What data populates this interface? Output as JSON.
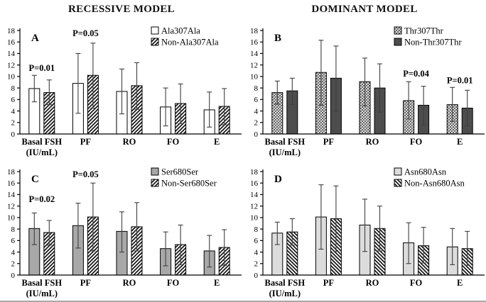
{
  "figure": {
    "left_title": "RECESSIVE MODEL",
    "right_title": "DOMINANT MODEL"
  },
  "colors": {
    "axis": "#000000",
    "error_bar": "#3f3f3f",
    "hatch_line": "#161616",
    "checker_line": "#4a4a4a",
    "dark_gray": "#4d4d4d",
    "mid_gray": "#a8a8a8",
    "light_gray": "#dcdcdc",
    "white": "#ffffff"
  },
  "chart_data": [
    {
      "type": "bar",
      "panel_label": "A",
      "model": "RECESSIVE MODEL",
      "ylim": [
        0,
        18
      ],
      "ytick_step": 2,
      "grid": false,
      "legend_position": "top-right",
      "categories": [
        [
          "Basal FSH",
          "(IU/mL)"
        ],
        [
          "PF"
        ],
        [
          "RO"
        ],
        [
          "FO"
        ],
        [
          "E"
        ]
      ],
      "series": [
        {
          "name": "Ala307Ala",
          "fill": "white",
          "values": [
            7.9,
            8.8,
            7.4,
            4.7,
            4.2
          ],
          "err_low": [
            5.6,
            3.6,
            3.5,
            1.4,
            1.2
          ],
          "err_high": [
            10.2,
            14.0,
            11.3,
            8.0,
            7.3
          ]
        },
        {
          "name": "Non-Ala307Ala",
          "fill": "hatch_fwd",
          "values": [
            7.2,
            10.2,
            8.4,
            5.3,
            4.8
          ],
          "err_low": [
            5.1,
            4.5,
            4.3,
            1.8,
            1.6
          ],
          "err_high": [
            9.4,
            15.8,
            12.4,
            8.7,
            7.9
          ]
        }
      ],
      "annotations": [
        {
          "text": "P=0.01",
          "group": 0,
          "y": 11.0
        },
        {
          "text": "P=0.05",
          "group": 1,
          "y": 17.0
        }
      ]
    },
    {
      "type": "bar",
      "panel_label": "B",
      "model": "DOMINANT MODEL",
      "ylim": [
        0,
        18
      ],
      "ytick_step": 2,
      "grid": false,
      "legend_position": "top-right",
      "categories": [
        [
          "Basal FSH",
          "(IU/mL)"
        ],
        [
          "PF"
        ],
        [
          "RO"
        ],
        [
          "FO"
        ],
        [
          "E"
        ]
      ],
      "series": [
        {
          "name": "Thr307Thr",
          "fill": "checker",
          "values": [
            7.2,
            10.7,
            9.1,
            5.8,
            5.1
          ],
          "err_low": [
            5.2,
            5.0,
            4.9,
            2.6,
            2.2
          ],
          "err_high": [
            9.2,
            16.3,
            13.2,
            9.1,
            8.1
          ]
        },
        {
          "name": "Non-Thr307Thr",
          "fill": "dark_gray",
          "values": [
            7.5,
            9.7,
            8.0,
            5.0,
            4.5
          ],
          "err_low": [
            5.1,
            4.0,
            3.8,
            1.5,
            1.4
          ],
          "err_high": [
            9.7,
            15.3,
            12.2,
            8.3,
            7.6
          ]
        }
      ],
      "annotations": [
        {
          "text": "P=0.04",
          "group": 3,
          "y": 10.0
        },
        {
          "text": "P=0.01",
          "group": 4,
          "y": 8.8
        }
      ]
    },
    {
      "type": "bar",
      "panel_label": "C",
      "model": "RECESSIVE MODEL",
      "ylim": [
        0,
        18
      ],
      "ytick_step": 2,
      "grid": false,
      "legend_position": "top-right",
      "categories": [
        [
          "Basal FSH",
          "(IU/mL)"
        ],
        [
          "PF"
        ],
        [
          "RO"
        ],
        [
          "FO"
        ],
        [
          "E"
        ]
      ],
      "series": [
        {
          "name": "Ser680Ser",
          "fill": "mid_gray",
          "values": [
            8.1,
            8.6,
            7.6,
            4.6,
            4.2
          ],
          "err_low": [
            5.3,
            4.7,
            4.0,
            1.6,
            1.4
          ],
          "err_high": [
            10.8,
            12.5,
            11.0,
            7.5,
            6.9
          ]
        },
        {
          "name": "Non-Ser680Ser",
          "fill": "hatch_fwd",
          "values": [
            7.4,
            10.1,
            8.4,
            5.3,
            4.8
          ],
          "err_low": [
            5.2,
            4.2,
            4.2,
            1.8,
            1.7
          ],
          "err_high": [
            9.5,
            16.0,
            12.6,
            8.7,
            7.9
          ]
        }
      ],
      "annotations": [
        {
          "text": "P=0.02",
          "group": 0,
          "y": 12.7
        },
        {
          "text": "P=0.05",
          "group": 1,
          "y": 17.0
        }
      ]
    },
    {
      "type": "bar",
      "panel_label": "D",
      "model": "DOMINANT MODEL",
      "ylim": [
        0,
        18
      ],
      "ytick_step": 2,
      "grid": false,
      "legend_position": "top-right",
      "categories": [
        [
          "Basal FSH",
          "(IU/mL)"
        ],
        [
          "PF"
        ],
        [
          "RO"
        ],
        [
          "FO"
        ],
        [
          "E"
        ]
      ],
      "series": [
        {
          "name": "Asn680Asn",
          "fill": "light_gray",
          "values": [
            7.3,
            10.1,
            8.7,
            5.6,
            4.9
          ],
          "err_low": [
            5.3,
            4.5,
            4.1,
            2.0,
            1.8
          ],
          "err_high": [
            9.2,
            15.7,
            13.2,
            9.1,
            8.1
          ]
        },
        {
          "name": "Non-Asn680Asn",
          "fill": "hatch_back",
          "values": [
            7.5,
            9.8,
            8.1,
            5.1,
            4.6
          ],
          "err_low": [
            5.2,
            4.1,
            4.2,
            2.1,
            1.7
          ],
          "err_high": [
            9.8,
            15.5,
            12.0,
            8.3,
            7.6
          ]
        }
      ],
      "annotations": []
    }
  ]
}
